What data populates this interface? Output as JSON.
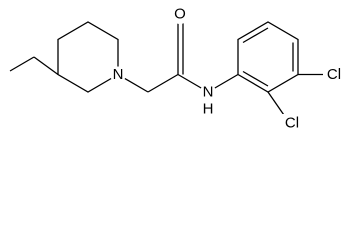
{
  "atoms": [
    {
      "label": "N"
    },
    {
      "label": "O"
    },
    {
      "label": "N"
    },
    {
      "label": "H"
    },
    {
      "label": "Cl"
    },
    {
      "label": "Cl"
    }
  ]
}
